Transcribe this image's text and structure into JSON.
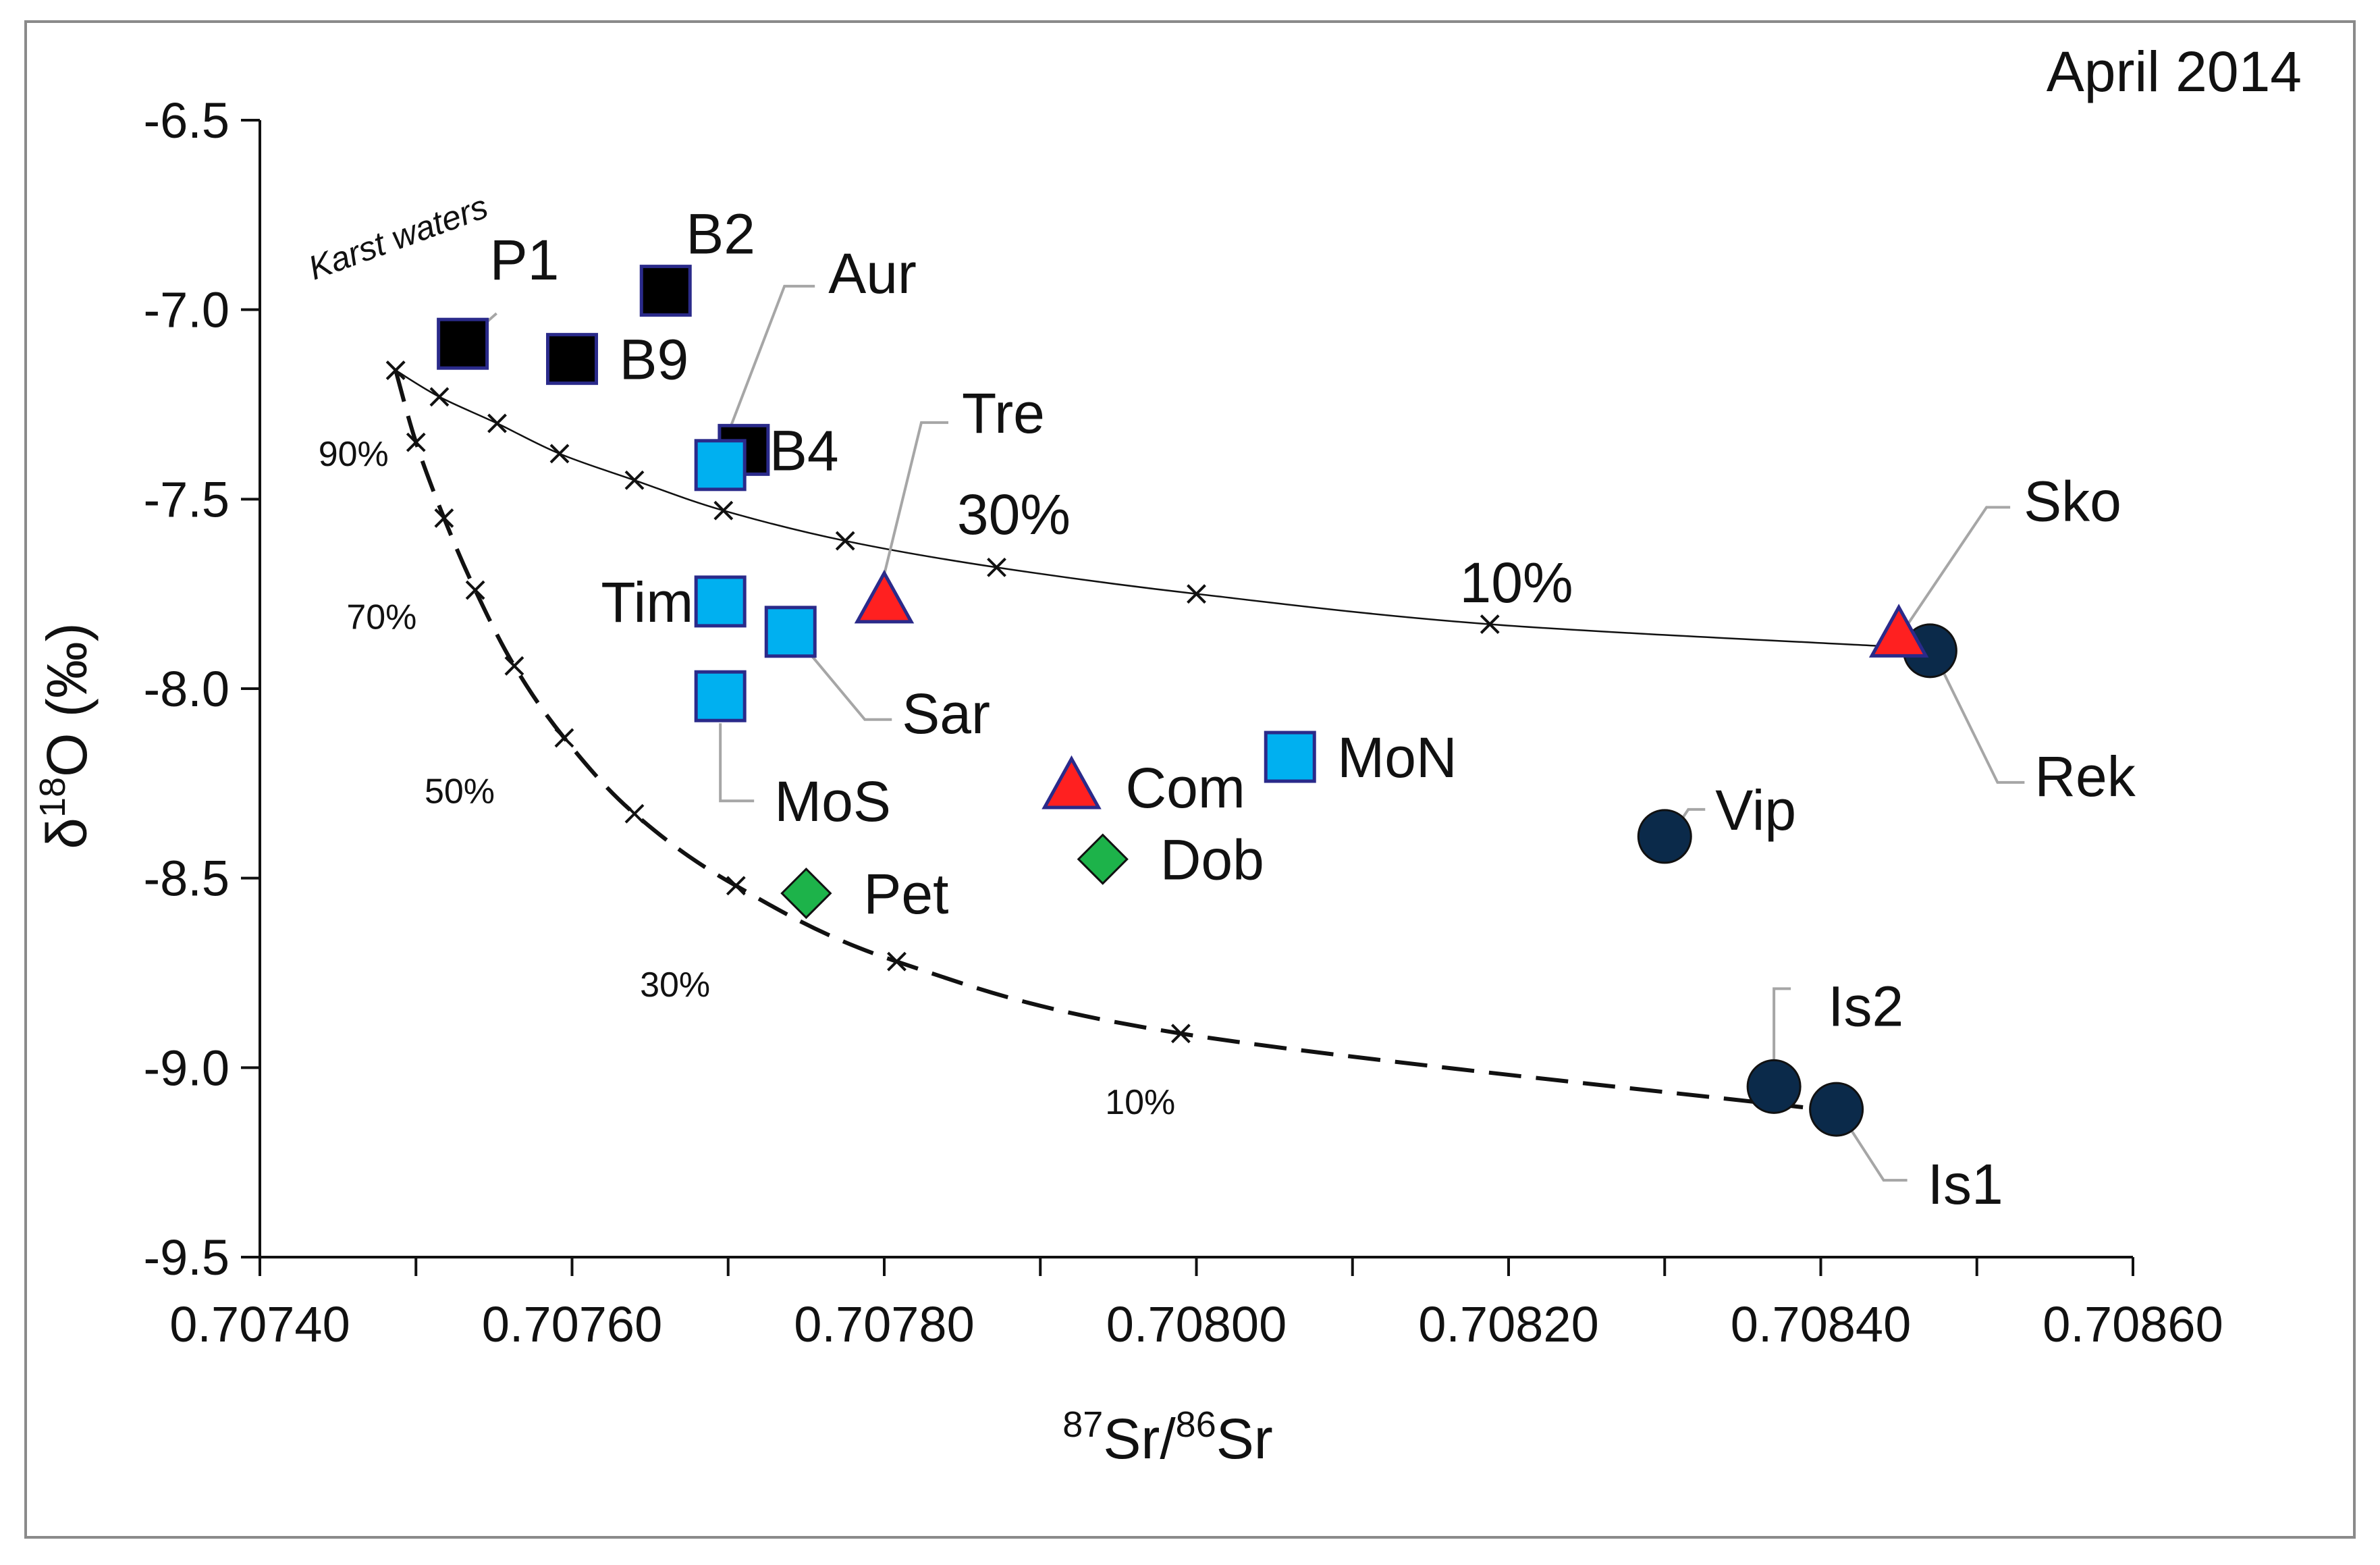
{
  "chart_data": {
    "type": "scatter",
    "title": "April 2014",
    "xlabel": {
      "sup1": "87",
      "base1": "Sr/",
      "sup2": "86",
      "base2": "Sr"
    },
    "ylabel": {
      "pre": "δ",
      "sup": "18",
      "post": "O (‰)"
    },
    "xlim": [
      0.7074,
      0.7086
    ],
    "ylim": [
      -9.5,
      -6.5
    ],
    "xticks": [
      0.7074,
      0.7076,
      0.7078,
      0.708,
      0.7082,
      0.7084,
      0.7086
    ],
    "xtick_labels": [
      "0.70740",
      "0.70760",
      "0.70780",
      "0.70800",
      "0.70820",
      "0.70840",
      "0.70860"
    ],
    "yticks": [
      -6.5,
      -7.0,
      -7.5,
      -8.0,
      -8.5,
      -9.0,
      -9.5
    ],
    "ytick_labels": [
      "-6.5",
      "-7.0",
      "-7.5",
      "-8.0",
      "-8.5",
      "-9.0",
      "-9.5"
    ],
    "colors": {
      "black_square": "#000000",
      "blue_square": "#00b0f0",
      "red_triangle": "#ff2020",
      "navy_circle": "#0b2a4a",
      "green_diamond": "#1db34a",
      "marker_edge": "#2a2a8a"
    },
    "annotation": "Karst waters",
    "series": [
      {
        "name": "black squares",
        "marker": "square",
        "color": "#000000",
        "points": [
          {
            "label": "P1",
            "x": 0.70753,
            "y": -7.09
          },
          {
            "label": "B2",
            "x": 0.70766,
            "y": -6.95
          },
          {
            "label": "B9",
            "x": 0.7076,
            "y": -7.13
          },
          {
            "label": "B4",
            "x": 0.70771,
            "y": -7.37
          }
        ]
      },
      {
        "name": "blue squares",
        "marker": "square",
        "color": "#00b0f0",
        "points": [
          {
            "label": "Aur",
            "x": 0.707695,
            "y": -7.41
          },
          {
            "label": "Tim",
            "x": 0.707695,
            "y": -7.77
          },
          {
            "label": "Sar",
            "x": 0.70774,
            "y": -7.85
          },
          {
            "label": "MoS",
            "x": 0.707695,
            "y": -8.02
          },
          {
            "label": "MoN",
            "x": 0.70806,
            "y": -8.18
          }
        ]
      },
      {
        "name": "red triangles",
        "marker": "triangle",
        "color": "#ff2020",
        "points": [
          {
            "label": "Tre",
            "x": 0.7078,
            "y": -7.77
          },
          {
            "label": "Com",
            "x": 0.70792,
            "y": -8.26
          },
          {
            "label": "Sko",
            "x": 0.70845,
            "y": -7.86
          }
        ]
      },
      {
        "name": "navy circles",
        "marker": "circle",
        "color": "#0b2a4a",
        "points": [
          {
            "label": "Rek",
            "x": 0.70847,
            "y": -7.9
          },
          {
            "label": "Vip",
            "x": 0.7083,
            "y": -8.39
          },
          {
            "label": "Is2",
            "x": 0.70837,
            "y": -9.05
          },
          {
            "label": "Is1",
            "x": 0.70841,
            "y": -9.11
          }
        ]
      },
      {
        "name": "green diamonds",
        "marker": "diamond",
        "color": "#1db34a",
        "points": [
          {
            "label": "Pet",
            "x": 0.70775,
            "y": -8.54
          },
          {
            "label": "Dob",
            "x": 0.70794,
            "y": -8.45
          }
        ]
      }
    ],
    "mixing_curves": [
      {
        "name": "upper mixing curve",
        "style": "solid",
        "x": [
          0.707487,
          0.707515,
          0.707552,
          0.707592,
          0.70764,
          0.707697,
          0.707775,
          0.707872,
          0.708,
          0.708188,
          0.70845
        ],
        "y": [
          -7.16,
          -7.23,
          -7.3,
          -7.38,
          -7.45,
          -7.53,
          -7.61,
          -7.68,
          -7.75,
          -7.83,
          -7.89
        ],
        "pct_labels": [
          {
            "text": "90%",
            "x": 0.70746,
            "y": -7.38
          },
          {
            "text": "70%",
            "x": 0.707478,
            "y": -7.81
          },
          {
            "text": "30%",
            "x": 0.707883,
            "y": -7.56
          },
          {
            "text": "10%",
            "x": 0.708205,
            "y": -7.74
          }
        ]
      },
      {
        "name": "lower mixing curve",
        "style": "dashed",
        "x": [
          0.707487,
          0.7075,
          0.707518,
          0.707538,
          0.707563,
          0.707595,
          0.70764,
          0.707705,
          0.707808,
          0.70799,
          0.7084
        ],
        "y": [
          -7.16,
          -7.35,
          -7.55,
          -7.74,
          -7.94,
          -8.13,
          -8.33,
          -8.52,
          -8.72,
          -8.91,
          -9.11
        ],
        "pct_labels": [
          {
            "text": "50%",
            "x": 0.707528,
            "y": -8.27
          },
          {
            "text": "30%",
            "x": 0.707666,
            "y": -8.78
          },
          {
            "text": "10%",
            "x": 0.707964,
            "y": -9.09
          }
        ]
      }
    ]
  }
}
